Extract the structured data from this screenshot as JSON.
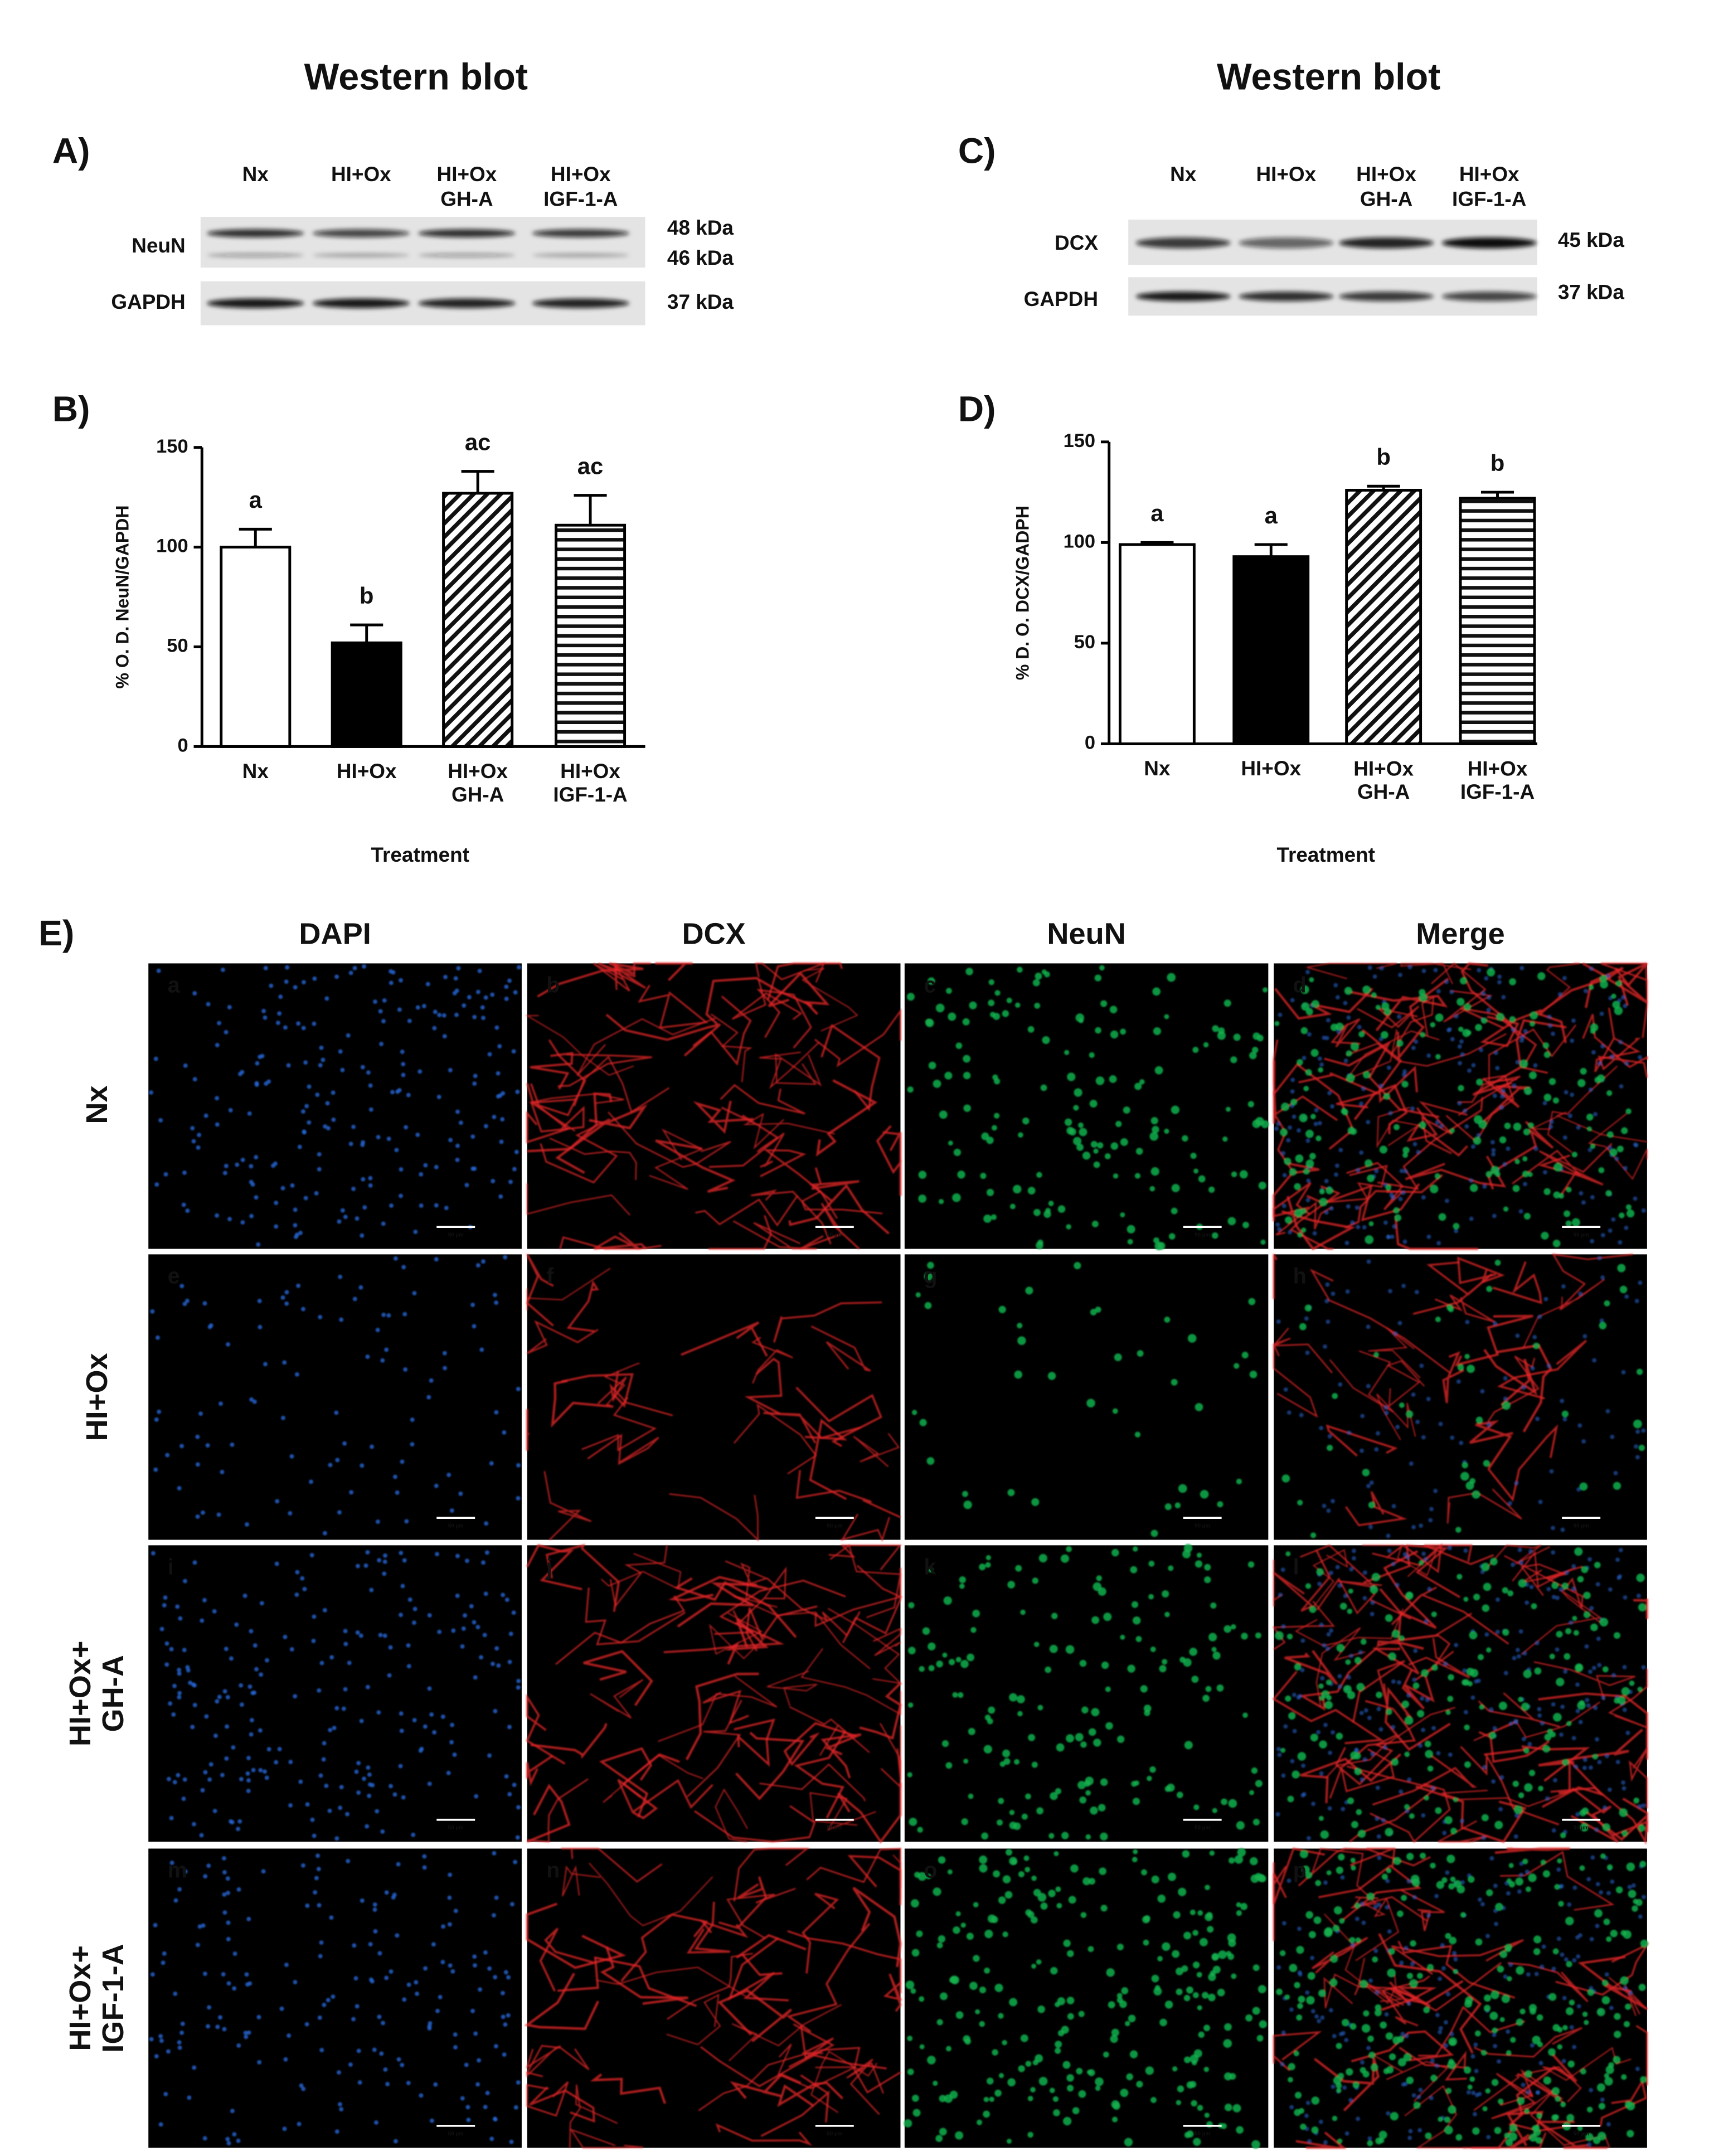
{
  "western_blots": [
    {
      "title": "Western blot",
      "panel_label": "A)",
      "lanes": [
        "Nx",
        "HI+Ox",
        "HI+Ox\nGH-A",
        "HI+Ox\nIGF-1-A"
      ],
      "rows": [
        {
          "name": "NeuN",
          "sizes": [
            "48 kDa",
            "46 kDa"
          ]
        },
        {
          "name": "GAPDH",
          "sizes": [
            "37 kDa"
          ]
        }
      ]
    },
    {
      "title": "Western blot",
      "panel_label": "C)",
      "lanes": [
        "Nx",
        "HI+Ox",
        "HI+Ox\nGH-A",
        "HI+Ox\nIGF-1-A"
      ],
      "rows": [
        {
          "name": "DCX",
          "sizes": [
            "45 kDa"
          ]
        },
        {
          "name": "GAPDH",
          "sizes": [
            "37 kDa"
          ]
        }
      ]
    }
  ],
  "chart_data": [
    {
      "type": "bar",
      "panel_label": "B)",
      "ylabel": "% O. D. NeuN/GAPDH",
      "xlabel": "Treatment",
      "categories": [
        "Nx",
        "HI+Ox",
        "HI+Ox\nGH-A",
        "HI+Ox\nIGF-1-A"
      ],
      "values": [
        100,
        52,
        127,
        111
      ],
      "errors": [
        9,
        9,
        11,
        15
      ],
      "annotations": [
        "a",
        "b",
        "ac",
        "ac"
      ],
      "bar_fills": [
        "white",
        "black",
        "diagonal",
        "horizontal"
      ],
      "ylim": [
        0,
        150
      ],
      "yticks": [
        0,
        50,
        100,
        150
      ]
    },
    {
      "type": "bar",
      "panel_label": "D)",
      "ylabel": "% D. O. DCX/GADPH",
      "xlabel": "Treatment",
      "categories": [
        "Nx",
        "HI+Ox",
        "HI+Ox\nGH-A",
        "HI+Ox\nIGF-1-A"
      ],
      "values": [
        99,
        93,
        126,
        122
      ],
      "errors": [
        1,
        6,
        2,
        3
      ],
      "annotations": [
        "a",
        "a",
        "b",
        "b"
      ],
      "bar_fills": [
        "white",
        "black",
        "diagonal",
        "horizontal"
      ],
      "ylim": [
        0,
        150
      ],
      "yticks": [
        0,
        50,
        100,
        150
      ]
    }
  ],
  "microscopy": {
    "panel_label": "E)",
    "channels": [
      {
        "name": "DAPI",
        "color": "#2467d6"
      },
      {
        "name": "DCX",
        "color": "#e8262a"
      },
      {
        "name": "NeuN",
        "color": "#13b04d"
      },
      {
        "name": "Merge",
        "color": "#111111"
      }
    ],
    "rows": [
      "Nx",
      "HI+Ox",
      "HI+Ox+\nGH-A",
      "HI+Ox+\nIGF-1-A"
    ],
    "panel_letters": [
      "a",
      "b",
      "c",
      "d",
      "e",
      "f",
      "g",
      "h",
      "i",
      "j",
      "k",
      "l",
      "m",
      "n",
      "o",
      "p"
    ],
    "scale_bar": "50 µm"
  }
}
